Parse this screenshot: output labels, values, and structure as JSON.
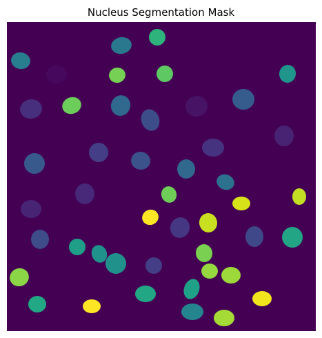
{
  "title": "Nucleus Segmentation Mask",
  "background_color": "#440154",
  "colormap": "viridis",
  "nuclei": [
    {
      "id": 1,
      "color": "#287d8e"
    },
    {
      "id": 2,
      "color": "#2a788e"
    },
    {
      "id": 3,
      "color": "#2eb37c"
    },
    {
      "id": 4,
      "color": "#46085c"
    },
    {
      "id": 5,
      "color": "#75d054"
    },
    {
      "id": 6,
      "color": "#5ec962"
    },
    {
      "id": 7,
      "color": "#1f958b"
    },
    {
      "id": 8,
      "color": "#472f7d"
    },
    {
      "id": 9,
      "color": "#6ccd5a"
    },
    {
      "id": 10,
      "color": "#31688e"
    },
    {
      "id": 11,
      "color": "#3d4d8a"
    },
    {
      "id": 12,
      "color": "#471365"
    },
    {
      "id": 13,
      "color": "#365c8d"
    },
    {
      "id": 14,
      "color": "#482374"
    },
    {
      "id": 15,
      "color": "#433e85"
    },
    {
      "id": 16,
      "color": "#46337f"
    },
    {
      "id": 17,
      "color": "#38598c"
    },
    {
      "id": 18,
      "color": "#3b528b"
    },
    {
      "id": 19,
      "color": "#31688e"
    },
    {
      "id": 20,
      "color": "#482878"
    },
    {
      "id": 21,
      "color": "#2c728e"
    },
    {
      "id": 22,
      "color": "#6ece58"
    },
    {
      "id": 23,
      "color": "#482475"
    },
    {
      "id": 24,
      "color": "#d8e219"
    },
    {
      "id": 25,
      "color": "#c2df23"
    },
    {
      "id": 26,
      "color": "#fde725"
    },
    {
      "id": 27,
      "color": "#453781"
    },
    {
      "id": 28,
      "color": "#c8e020"
    },
    {
      "id": 29,
      "color": "#3e4c8a"
    },
    {
      "id": 30,
      "color": "#1f9f88"
    },
    {
      "id": 31,
      "color": "#20928c"
    },
    {
      "id": 32,
      "color": "#21918c"
    },
    {
      "id": 33,
      "color": "#3f4889"
    },
    {
      "id": 34,
      "color": "#21a585"
    },
    {
      "id": 35,
      "color": "#7ad151"
    },
    {
      "id": 36,
      "color": "#433e85"
    },
    {
      "id": 37,
      "color": "#95d840"
    },
    {
      "id": 38,
      "color": "#9dd93b"
    },
    {
      "id": 39,
      "color": "#8bd646"
    },
    {
      "id": 40,
      "color": "#1fa188"
    },
    {
      "id": 41,
      "color": "#22a884"
    },
    {
      "id": 42,
      "color": "#22a785"
    },
    {
      "id": 43,
      "color": "#fde725"
    },
    {
      "id": 44,
      "color": "#25858e"
    },
    {
      "id": 45,
      "color": "#a5db36"
    },
    {
      "id": 46,
      "color": "#f1e51d"
    },
    {
      "id": 47,
      "color": "#21918c"
    },
    {
      "id": 48,
      "color": "#2db27d"
    }
  ]
}
